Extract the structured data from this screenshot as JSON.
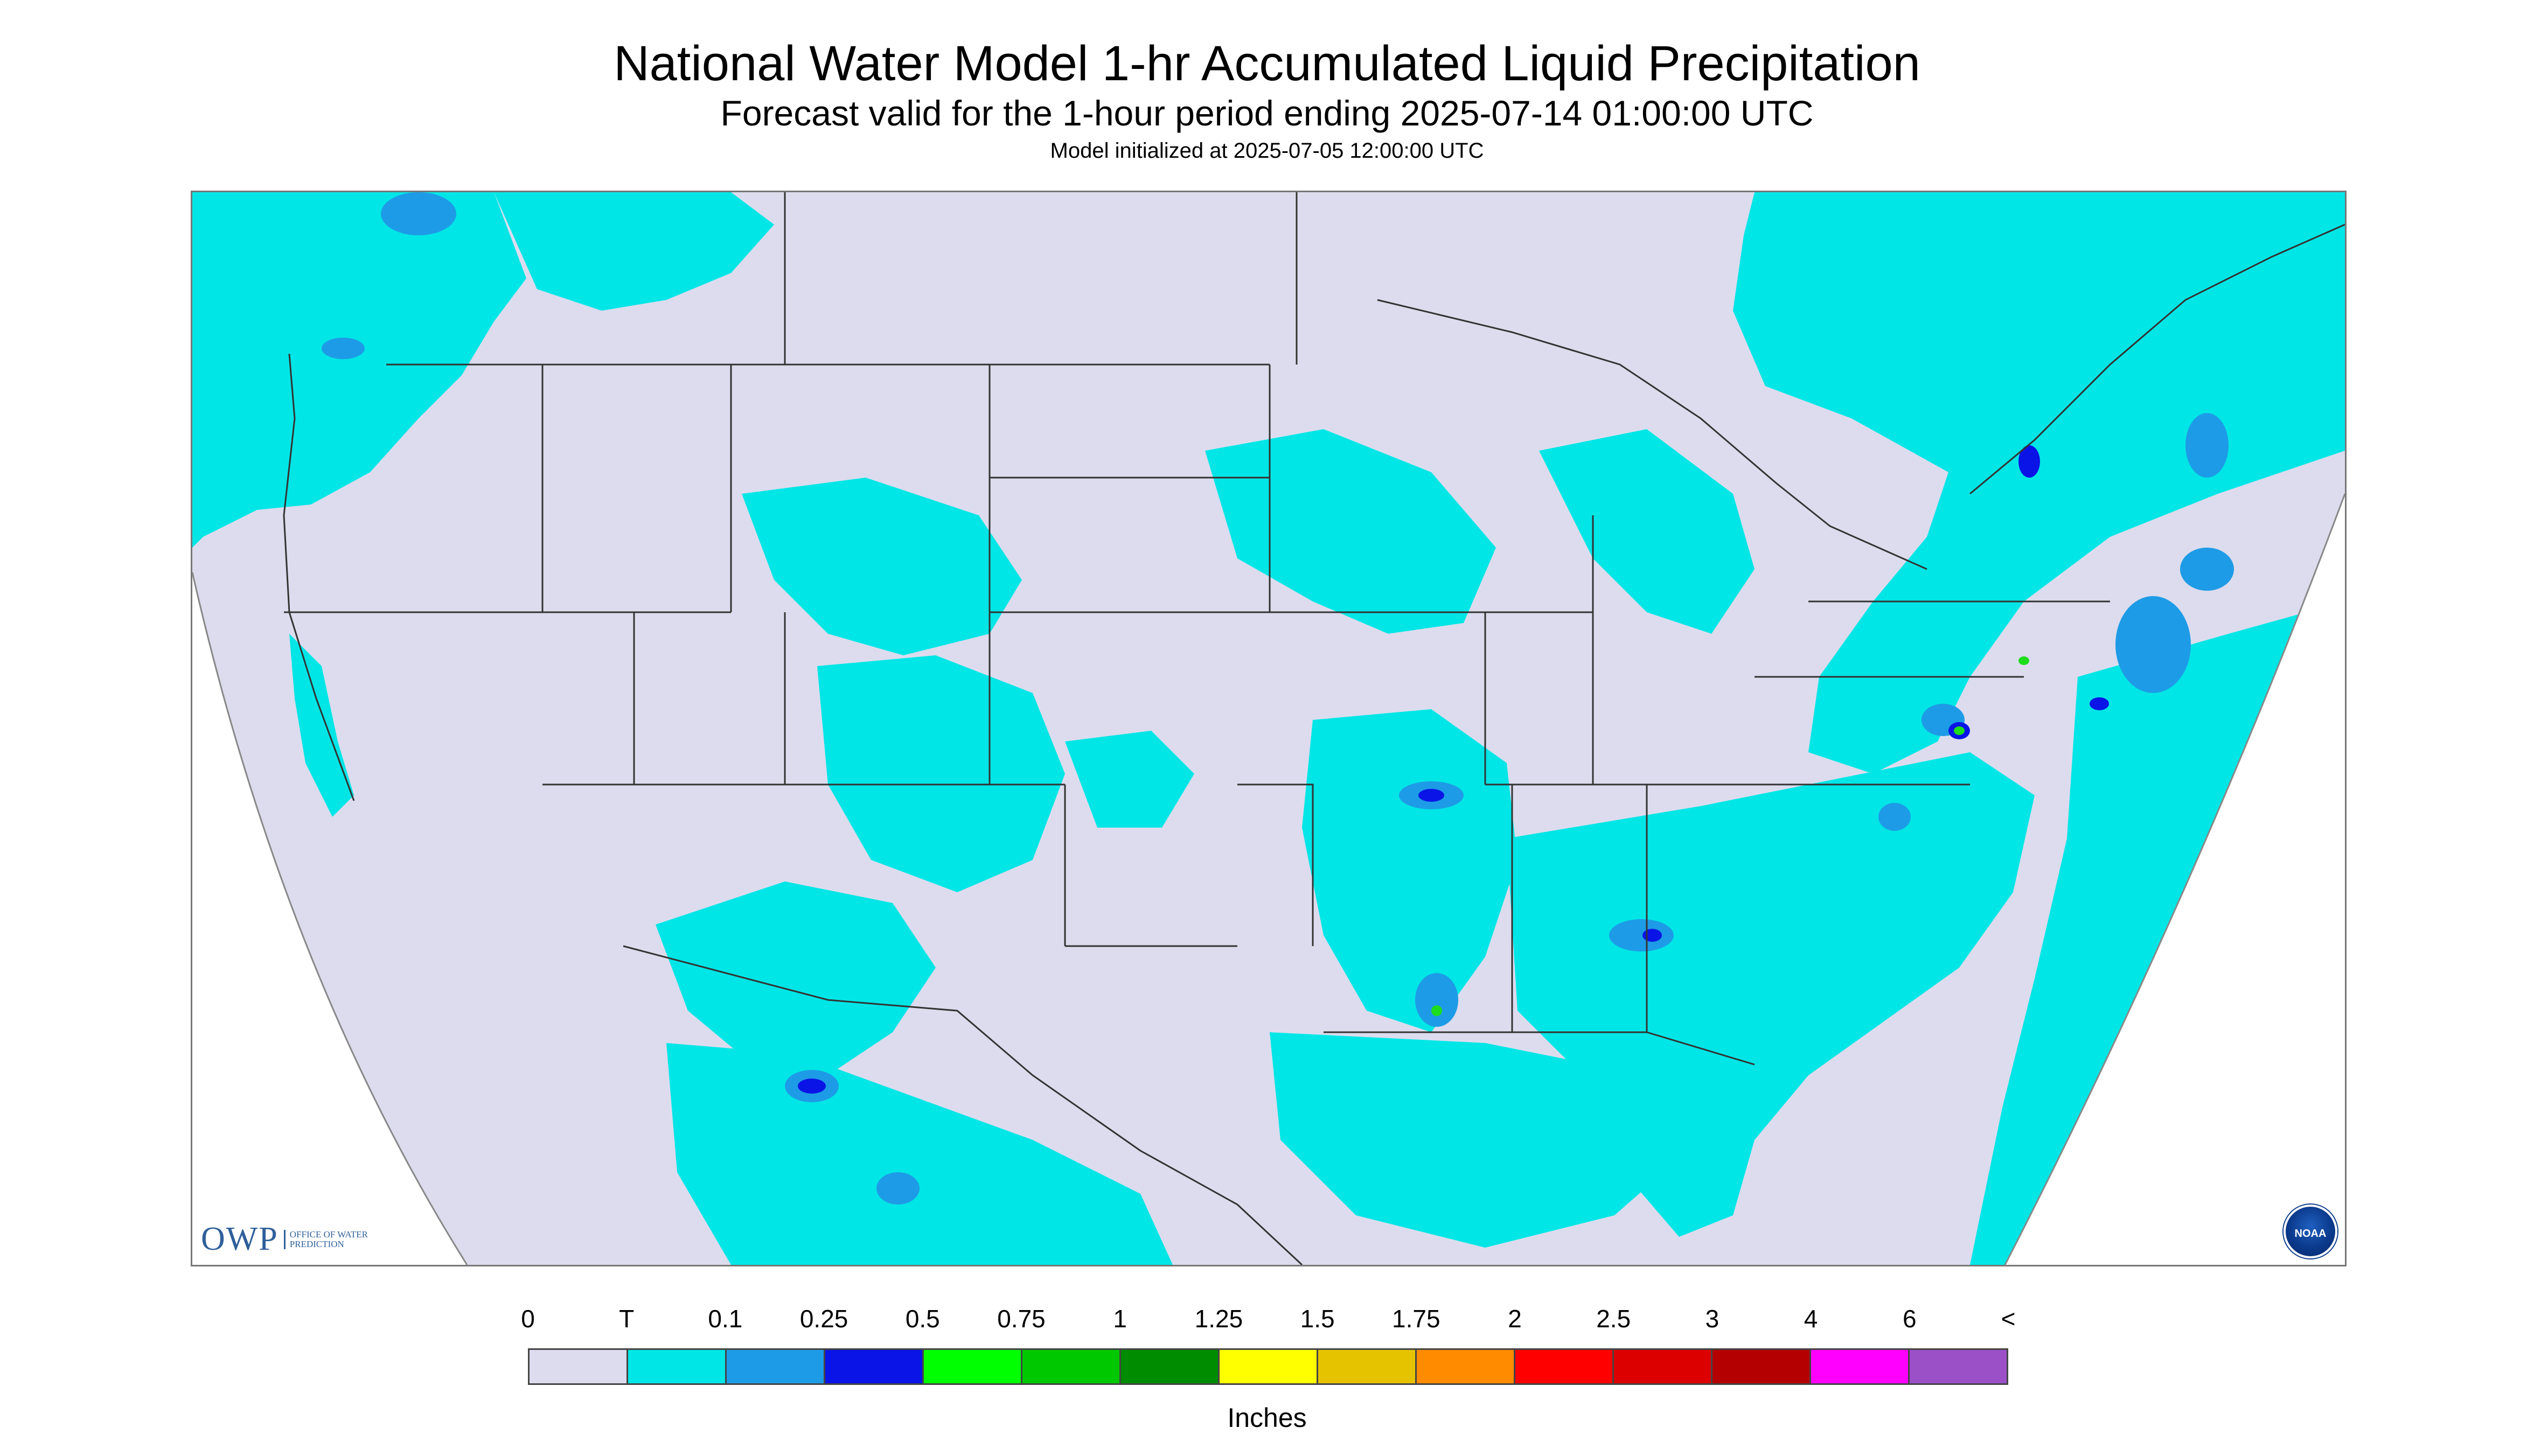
{
  "title": "National Water Model 1-hr Accumulated Liquid Precipitation",
  "subtitle": "Forecast valid for the 1-hour period ending 2025-07-14 01:00:00 UTC",
  "init_line": "Model initialized at 2025-07-05 12:00:00 UTC",
  "logos": {
    "owp_text": "OWP",
    "owp_sub": "Office of Water Prediction",
    "noaa_text": "NOAA"
  },
  "colors": {
    "none": "#dcdcee",
    "trace": "#00e6e6",
    "blue_light": "#1e9be6",
    "blue_dark": "#0a14e6",
    "green": "#1edc1e",
    "outside": "#ffffff",
    "borders": "#333333"
  },
  "legend": {
    "units": "Inches",
    "tick_labels": [
      "0",
      "T",
      "0.1",
      "0.25",
      "0.5",
      "0.75",
      "1",
      "1.25",
      "1.5",
      "1.75",
      "2",
      "2.5",
      "3",
      "4",
      "6",
      "<"
    ],
    "bins": [
      {
        "from": "0",
        "to": "T",
        "color": "#dcdcee"
      },
      {
        "from": "T",
        "to": "0.1",
        "color": "#00e6e6"
      },
      {
        "from": "0.1",
        "to": "0.25",
        "color": "#1e9be6"
      },
      {
        "from": "0.25",
        "to": "0.5",
        "color": "#0a14e6"
      },
      {
        "from": "0.5",
        "to": "0.75",
        "color": "#00ff00"
      },
      {
        "from": "0.75",
        "to": "1",
        "color": "#00c800"
      },
      {
        "from": "1",
        "to": "1.25",
        "color": "#008c00"
      },
      {
        "from": "1.25",
        "to": "1.5",
        "color": "#ffff00"
      },
      {
        "from": "1.5",
        "to": "1.75",
        "color": "#e6c300"
      },
      {
        "from": "1.75",
        "to": "2",
        "color": "#ff8c00"
      },
      {
        "from": "2",
        "to": "2.5",
        "color": "#ff0000"
      },
      {
        "from": "2.5",
        "to": "3",
        "color": "#dc0000"
      },
      {
        "from": "3",
        "to": "4",
        "color": "#b40000"
      },
      {
        "from": "4",
        "to": "6",
        "color": "#ff00ff"
      },
      {
        "from": "6",
        "to": "<",
        "color": "#9b50c8"
      }
    ]
  }
}
